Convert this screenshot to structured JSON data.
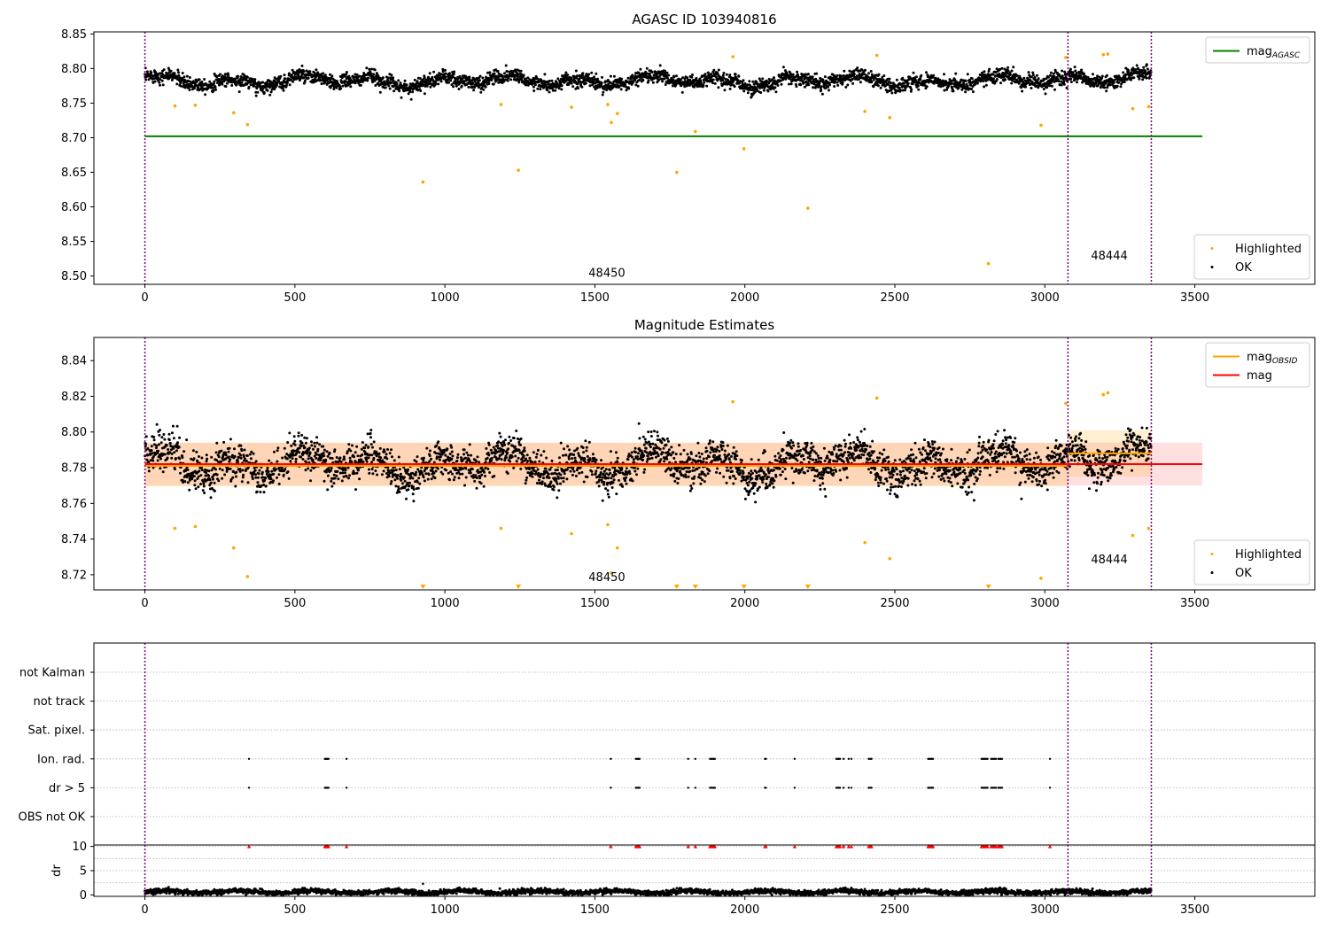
{
  "figure": {
    "title_top": "AGASC ID 103940816",
    "title_middle": "Magnitude Estimates"
  },
  "colors": {
    "ok": "#000000",
    "highlighted": "#ffa500",
    "mag_agasc": "#008000",
    "mag": "#ff0000",
    "mag_obsid": "#ffa500",
    "obs_boundary": "#800080",
    "grid": "#b0b0b0",
    "flag_marker": "#ff0000"
  },
  "chart_data": [
    {
      "id": "top",
      "type": "scatter",
      "title": "AGASC ID 103940816",
      "xlim": [
        -170,
        3900
      ],
      "ylim": [
        8.488,
        8.853
      ],
      "xticks": [
        0,
        500,
        1000,
        1500,
        2000,
        2500,
        3000,
        3500
      ],
      "yticks": [
        8.5,
        8.55,
        8.6,
        8.65,
        8.7,
        8.75,
        8.8,
        8.85
      ],
      "ytick_labels": [
        "8.50",
        "8.55",
        "8.60",
        "8.65",
        "8.70",
        "8.75",
        "8.80",
        "8.85"
      ],
      "obs_boundaries": [
        0,
        3077,
        3355
      ],
      "obs_labels": [
        {
          "text": "48450",
          "x": 1540,
          "y": 8.499
        },
        {
          "text": "48444",
          "x": 3215,
          "y": 8.524
        }
      ],
      "lines": [
        {
          "name": "mag",
          "sub": "AGASC",
          "y": 8.702,
          "x": [
            0,
            3525
          ],
          "color": "#008000"
        }
      ],
      "ok_series": {
        "n": 3355,
        "segments": [
          {
            "x_start": 0,
            "x_end": 3077,
            "mean": 8.782
          },
          {
            "x_start": 3077,
            "x_end": 3355,
            "mean": 8.788
          }
        ],
        "variation_amplitude": 0.01,
        "noise": 0.005
      },
      "highlighted_points": [
        [
          100,
          8.746
        ],
        [
          168,
          8.747
        ],
        [
          296,
          8.736
        ],
        [
          342,
          8.719
        ],
        [
          927,
          8.636
        ],
        [
          1187,
          8.748
        ],
        [
          1245,
          8.653
        ],
        [
          1422,
          8.744
        ],
        [
          1543,
          8.748
        ],
        [
          1555,
          8.722
        ],
        [
          1575,
          8.735
        ],
        [
          1773,
          8.65
        ],
        [
          1835,
          8.709
        ],
        [
          1960,
          8.817
        ],
        [
          1997,
          8.684
        ],
        [
          2210,
          8.598
        ],
        [
          2400,
          8.738
        ],
        [
          2440,
          8.819
        ],
        [
          2483,
          8.729
        ],
        [
          2812,
          8.518
        ],
        [
          2987,
          8.718
        ],
        [
          3070,
          8.816
        ],
        [
          3195,
          8.82
        ],
        [
          3210,
          8.821
        ],
        [
          3293,
          8.742
        ],
        [
          3346,
          8.745
        ]
      ],
      "legend": [
        {
          "position": "upper right",
          "entries": [
            {
              "label": "mag",
              "sub": "AGASC",
              "kind": "line",
              "color": "#008000"
            }
          ]
        },
        {
          "position": "lower right",
          "entries": [
            {
              "label": "Highlighted",
              "kind": "point",
              "color": "#ffa500"
            },
            {
              "label": "OK",
              "kind": "point",
              "color": "#000000"
            }
          ]
        }
      ]
    },
    {
      "id": "middle",
      "type": "scatter",
      "title": "Magnitude Estimates",
      "xlim": [
        -170,
        3900
      ],
      "ylim": [
        8.7115,
        8.853
      ],
      "xticks": [
        0,
        500,
        1000,
        1500,
        2000,
        2500,
        3000,
        3500
      ],
      "yticks": [
        8.72,
        8.74,
        8.76,
        8.78,
        8.8,
        8.82,
        8.84
      ],
      "ytick_labels": [
        "8.72",
        "8.74",
        "8.76",
        "8.78",
        "8.80",
        "8.82",
        "8.84"
      ],
      "obs_boundaries": [
        0,
        3077,
        3355
      ],
      "obs_labels": [
        {
          "text": "48450",
          "x": 1540,
          "y": 8.7165
        },
        {
          "text": "48444",
          "x": 3215,
          "y": 8.7265
        }
      ],
      "lines": [
        {
          "name": "mag",
          "y": 8.782,
          "x": [
            0,
            3525
          ],
          "color": "#ff0000",
          "band": [
            8.77,
            8.794
          ]
        },
        {
          "name": "mag",
          "sub": "OBSID",
          "color": "#ffa500",
          "segments": [
            {
              "x": [
                0,
                3077
              ],
              "y": 8.781,
              "band": [
                8.7695,
                8.794
              ]
            },
            {
              "x": [
                3077,
                3355
              ],
              "y": 8.788,
              "band": [
                8.775,
                8.801
              ]
            }
          ]
        }
      ],
      "out_of_range_markers": [
        927,
        1245,
        1773,
        1835,
        1997,
        2210,
        2812
      ],
      "highlighted_points": [
        [
          100,
          8.746
        ],
        [
          168,
          8.747
        ],
        [
          296,
          8.735
        ],
        [
          342,
          8.719
        ],
        [
          1187,
          8.746
        ],
        [
          1422,
          8.743
        ],
        [
          1543,
          8.748
        ],
        [
          1555,
          8.721
        ],
        [
          1575,
          8.735
        ],
        [
          1960,
          8.817
        ],
        [
          2400,
          8.738
        ],
        [
          2440,
          8.819
        ],
        [
          2483,
          8.729
        ],
        [
          2987,
          8.718
        ],
        [
          3070,
          8.816
        ],
        [
          3195,
          8.821
        ],
        [
          3210,
          8.822
        ],
        [
          3293,
          8.742
        ],
        [
          3346,
          8.746
        ]
      ],
      "legend": [
        {
          "position": "upper right",
          "entries": [
            {
              "label": "mag",
              "sub": "OBSID",
              "kind": "line",
              "color": "#ffa500"
            },
            {
              "label": "mag",
              "kind": "line",
              "color": "#ff0000"
            }
          ]
        },
        {
          "position": "lower right",
          "entries": [
            {
              "label": "Highlighted",
              "kind": "point",
              "color": "#ffa500"
            },
            {
              "label": "OK",
              "kind": "point",
              "color": "#000000"
            }
          ]
        }
      ]
    },
    {
      "id": "flags",
      "type": "scatter",
      "xlim": [
        -170,
        3900
      ],
      "categories": [
        "OBS not OK",
        "dr > 5",
        "Ion. rad.",
        "Sat. pixel.",
        "not track",
        "not Kalman"
      ],
      "obs_boundaries": [
        0,
        3077,
        3355
      ],
      "flagged_x": [
        347,
        600,
        603,
        606,
        609,
        612,
        672,
        1553,
        1637,
        1641,
        1645,
        1649,
        1811,
        1835,
        1884,
        1888,
        1892,
        1896,
        1900,
        2067,
        2070,
        2166,
        2305,
        2309,
        2313,
        2317,
        2329,
        2346,
        2355,
        2413,
        2418,
        2422,
        2611,
        2615,
        2619,
        2623,
        2627,
        2789,
        2793,
        2797,
        2801,
        2805,
        2809,
        2821,
        2825,
        2829,
        2833,
        2837,
        2845,
        2849,
        2853,
        2857,
        3017
      ],
      "flag_rows": [
        "dr > 5",
        "Ion. rad."
      ]
    },
    {
      "id": "dr",
      "type": "scatter",
      "ylabel": "dr",
      "xlim": [
        -170,
        3900
      ],
      "ylim": [
        -0.3,
        10.3
      ],
      "xticks": [
        0,
        500,
        1000,
        1500,
        2000,
        2500,
        3000,
        3500
      ],
      "yticks": [
        0,
        5,
        10
      ],
      "ytick_labels": [
        "0",
        "5",
        "10"
      ],
      "obs_boundaries": [
        0,
        3077,
        3355
      ],
      "dr_mean": 0.6,
      "dr_outliers": [
        [
          927,
          2.3
        ],
        [
          1773,
          1.4
        ],
        [
          2400,
          1.2
        ]
      ],
      "capped_markers_x_ref": "flags.flagged_x",
      "cap_value": 10
    }
  ]
}
